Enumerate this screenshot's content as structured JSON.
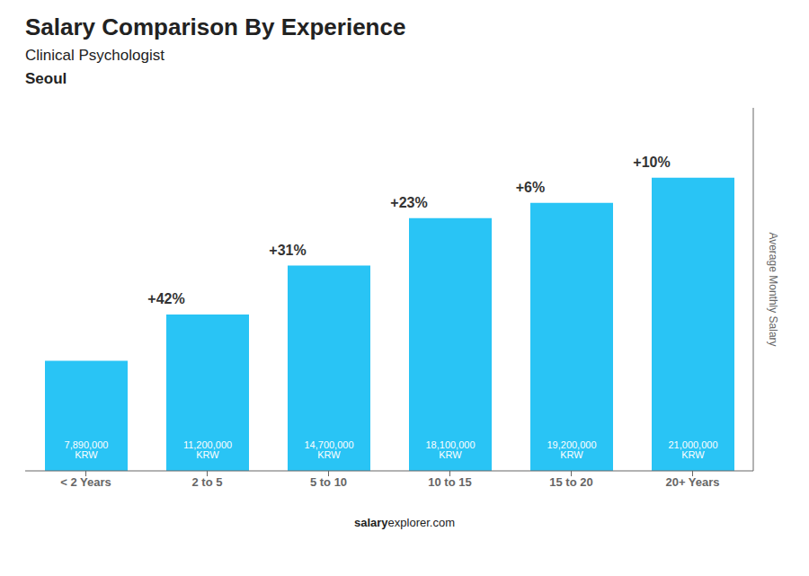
{
  "chart_data": {
    "type": "bar",
    "title": "Salary Comparison By Experience",
    "subtitle": "Clinical Psychologist",
    "city": "Seoul",
    "ylabel": "Average Monthly Salary",
    "categories": [
      "< 2 Years",
      "2 to 5",
      "5 to 10",
      "10 to 15",
      "15 to 20",
      "20+ Years"
    ],
    "values": [
      7890000,
      11200000,
      14700000,
      18100000,
      19200000,
      21000000
    ],
    "value_labels": [
      "7,890,000 KRW",
      "11,200,000 KRW",
      "14,700,000 KRW",
      "18,100,000 KRW",
      "19,200,000 KRW",
      "21,000,000 KRW"
    ],
    "data_labels": true,
    "pct_changes": [
      null,
      "+42%",
      "+31%",
      "+23%",
      "+6%",
      "+10%"
    ],
    "color": "#29c4f5",
    "ylim": [
      0,
      26000000
    ],
    "tick_labels": "x",
    "grid": false,
    "footer": [
      "salary",
      "explorer.com"
    ]
  }
}
